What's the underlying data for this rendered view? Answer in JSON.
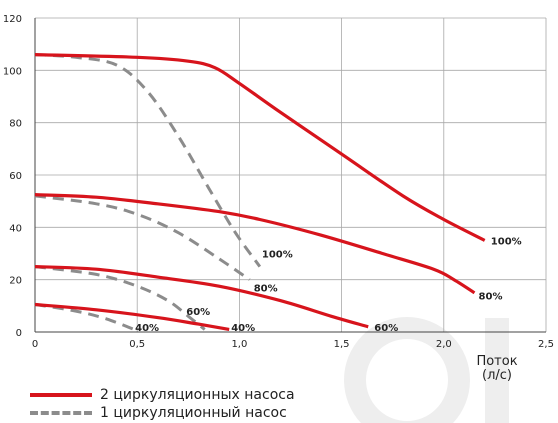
{
  "chart_data": {
    "type": "line",
    "title": "",
    "xlabel": "Поток\n(л/с)",
    "ylabel": "",
    "xlim": [
      0,
      2.5
    ],
    "ylim": [
      0,
      120
    ],
    "xticks": [
      "0",
      "0,5",
      "1,0",
      "1,5",
      "2,0",
      "2,5"
    ],
    "yticks": [
      "0",
      "20",
      "40",
      "60",
      "80",
      "100",
      "120"
    ],
    "grid": true,
    "legend_position": "bottom-left",
    "colors": {
      "double": "#d7141c",
      "single": "#8c8c8c"
    },
    "series": [
      {
        "name": "2 циркуляционных насоса",
        "group": "double",
        "label": "100%",
        "points": [
          [
            0,
            106
          ],
          [
            0.5,
            105
          ],
          [
            0.75,
            103.5
          ],
          [
            0.88,
            101
          ],
          [
            1.0,
            95
          ],
          [
            1.2,
            84
          ],
          [
            1.5,
            68
          ],
          [
            1.8,
            52
          ],
          [
            2.0,
            43
          ],
          [
            2.2,
            35
          ]
        ]
      },
      {
        "name": "2 циркуляционных насоса",
        "group": "double",
        "label": "80%",
        "points": [
          [
            0,
            52.5
          ],
          [
            0.3,
            51.5
          ],
          [
            0.6,
            49
          ],
          [
            0.9,
            46
          ],
          [
            1.1,
            43
          ],
          [
            1.4,
            37
          ],
          [
            1.7,
            30
          ],
          [
            1.95,
            24
          ],
          [
            2.05,
            20
          ],
          [
            2.15,
            15
          ]
        ]
      },
      {
        "name": "2 циркуляционных насоса",
        "group": "double",
        "label": "60%",
        "points": [
          [
            0,
            25
          ],
          [
            0.3,
            24
          ],
          [
            0.6,
            21
          ],
          [
            0.9,
            17.5
          ],
          [
            1.2,
            12
          ],
          [
            1.45,
            6
          ],
          [
            1.63,
            2
          ]
        ]
      },
      {
        "name": "2 циркуляционных насоса",
        "group": "double",
        "label": "40%",
        "points": [
          [
            0,
            10.5
          ],
          [
            0.3,
            8.5
          ],
          [
            0.6,
            5.5
          ],
          [
            0.8,
            3
          ],
          [
            0.95,
            1
          ]
        ]
      },
      {
        "name": "1 циркуляционный насос",
        "group": "single",
        "label": "100%",
        "points": [
          [
            0,
            106
          ],
          [
            0.2,
            105
          ],
          [
            0.4,
            102
          ],
          [
            0.55,
            92
          ],
          [
            0.7,
            75
          ],
          [
            0.85,
            55
          ],
          [
            0.98,
            38
          ],
          [
            1.1,
            25
          ]
        ]
      },
      {
        "name": "1 циркуляционный насос",
        "group": "single",
        "label": "80%",
        "points": [
          [
            0,
            52
          ],
          [
            0.3,
            49
          ],
          [
            0.5,
            45
          ],
          [
            0.7,
            38
          ],
          [
            0.9,
            28
          ],
          [
            1.05,
            20
          ]
        ]
      },
      {
        "name": "1 циркуляционный насос",
        "group": "single",
        "label": "60%",
        "points": [
          [
            0,
            25
          ],
          [
            0.3,
            22
          ],
          [
            0.5,
            17.5
          ],
          [
            0.65,
            12
          ],
          [
            0.75,
            6
          ],
          [
            0.83,
            1
          ]
        ]
      },
      {
        "name": "1 циркуляционный насос",
        "group": "single",
        "label": "40%",
        "points": [
          [
            0,
            10.5
          ],
          [
            0.2,
            8
          ],
          [
            0.35,
            5
          ],
          [
            0.5,
            0.5
          ]
        ]
      }
    ],
    "point_labels": [
      {
        "text": "100%",
        "x": 1.11,
        "y": 30,
        "group": "single"
      },
      {
        "text": "100%",
        "x": 2.23,
        "y": 35,
        "group": "double"
      },
      {
        "text": "80%",
        "x": 1.07,
        "y": 17,
        "group": "single"
      },
      {
        "text": "80%",
        "x": 2.17,
        "y": 14,
        "group": "double"
      },
      {
        "text": "60%",
        "x": 0.74,
        "y": 8,
        "group": "single"
      },
      {
        "text": "60%",
        "x": 1.66,
        "y": 2,
        "group": "double"
      },
      {
        "text": "40%",
        "x": 0.49,
        "y": 2,
        "group": "single"
      },
      {
        "text": "40%",
        "x": 0.96,
        "y": 2,
        "group": "double"
      }
    ]
  },
  "legend": {
    "double_label": "2 циркуляционных насоса",
    "single_label": "1 циркуляционный насос"
  }
}
